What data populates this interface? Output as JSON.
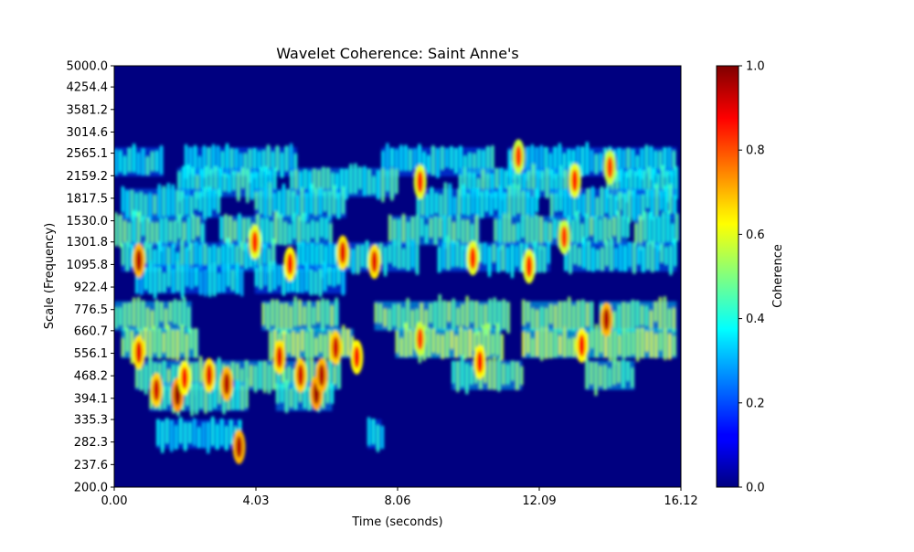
{
  "chart_data": {
    "type": "heatmap",
    "title": "Wavelet Coherence: Saint Anne's",
    "xlabel": "Time (seconds)",
    "ylabel": "Scale (Frequency)",
    "xlim": [
      0.0,
      16.12
    ],
    "x_ticks": [
      "0.00",
      "4.03",
      "8.06",
      "12.09",
      "16.12"
    ],
    "y_scale": "log",
    "ylim": [
      200.0,
      5000.0
    ],
    "y_ticks": [
      "5000.0",
      "4254.4",
      "3581.2",
      "3014.6",
      "2565.1",
      "2159.2",
      "1817.5",
      "1530.0",
      "1301.8",
      "1095.8",
      "922.4",
      "776.5",
      "660.7",
      "556.1",
      "468.2",
      "394.1",
      "335.3",
      "282.3",
      "237.6",
      "200.0"
    ],
    "colormap": "jet",
    "colorbar": {
      "label": "Coherence",
      "range": [
        0.0,
        1.0
      ],
      "ticks": [
        "0.0",
        "0.2",
        "0.4",
        "0.6",
        "0.8",
        "1.0"
      ]
    },
    "background_value": 0.0,
    "bands": [
      {
        "scale": 2400,
        "value": 0.38,
        "segments": [
          [
            0.0,
            1.4
          ],
          [
            2.0,
            5.2
          ],
          [
            7.6,
            10.8
          ],
          [
            11.2,
            16.0
          ]
        ]
      },
      {
        "scale": 2050,
        "value": 0.42,
        "segments": [
          [
            1.8,
            4.6
          ],
          [
            5.0,
            8.0
          ],
          [
            9.8,
            13.2
          ],
          [
            14.0,
            16.0
          ]
        ]
      },
      {
        "scale": 1750,
        "value": 0.4,
        "segments": [
          [
            0.2,
            3.0
          ],
          [
            4.0,
            6.6
          ],
          [
            8.6,
            12.0
          ],
          [
            12.4,
            16.0
          ]
        ]
      },
      {
        "scale": 1420,
        "value": 0.45,
        "segments": [
          [
            0.0,
            2.6
          ],
          [
            3.0,
            6.2
          ],
          [
            7.8,
            10.4
          ],
          [
            10.8,
            14.6
          ],
          [
            14.8,
            16.0
          ]
        ]
      },
      {
        "scale": 1160,
        "value": 0.4,
        "segments": [
          [
            0.2,
            4.6
          ],
          [
            5.2,
            8.6
          ],
          [
            9.2,
            12.4
          ],
          [
            12.8,
            16.0
          ]
        ]
      },
      {
        "scale": 980,
        "value": 0.36,
        "segments": [
          [
            0.6,
            3.6
          ],
          [
            4.0,
            6.6
          ]
        ]
      },
      {
        "scale": 740,
        "value": 0.5,
        "segments": [
          [
            0.0,
            2.2
          ],
          [
            4.2,
            6.4
          ],
          [
            7.4,
            11.2
          ],
          [
            11.6,
            13.6
          ],
          [
            13.8,
            16.0
          ]
        ]
      },
      {
        "scale": 600,
        "value": 0.55,
        "segments": [
          [
            0.2,
            2.4
          ],
          [
            4.4,
            6.8
          ],
          [
            8.0,
            11.0
          ],
          [
            11.6,
            16.0
          ]
        ]
      },
      {
        "scale": 470,
        "value": 0.48,
        "segments": [
          [
            0.6,
            4.8
          ],
          [
            4.8,
            6.4
          ],
          [
            9.6,
            11.6
          ],
          [
            13.4,
            14.8
          ]
        ]
      },
      {
        "scale": 400,
        "value": 0.45,
        "segments": [
          [
            1.0,
            3.8
          ],
          [
            4.6,
            6.2
          ]
        ]
      },
      {
        "scale": 300,
        "value": 0.36,
        "segments": [
          [
            1.2,
            3.6
          ],
          [
            7.2,
            7.6
          ]
        ]
      }
    ],
    "hotspots": [
      {
        "x": 0.7,
        "scale": 1130,
        "value": 0.95
      },
      {
        "x": 0.7,
        "scale": 560,
        "value": 0.9
      },
      {
        "x": 1.2,
        "scale": 420,
        "value": 0.92
      },
      {
        "x": 1.8,
        "scale": 405,
        "value": 0.98
      },
      {
        "x": 2.0,
        "scale": 460,
        "value": 0.88
      },
      {
        "x": 2.7,
        "scale": 470,
        "value": 0.9
      },
      {
        "x": 3.2,
        "scale": 440,
        "value": 0.95
      },
      {
        "x": 3.55,
        "scale": 272,
        "value": 0.95
      },
      {
        "x": 4.0,
        "scale": 1300,
        "value": 0.85
      },
      {
        "x": 4.7,
        "scale": 540,
        "value": 0.9
      },
      {
        "x": 5.0,
        "scale": 1100,
        "value": 0.88
      },
      {
        "x": 5.3,
        "scale": 470,
        "value": 0.92
      },
      {
        "x": 5.75,
        "scale": 410,
        "value": 0.97
      },
      {
        "x": 5.9,
        "scale": 470,
        "value": 0.95
      },
      {
        "x": 6.3,
        "scale": 580,
        "value": 0.92
      },
      {
        "x": 6.5,
        "scale": 1200,
        "value": 0.9
      },
      {
        "x": 6.9,
        "scale": 540,
        "value": 0.88
      },
      {
        "x": 7.4,
        "scale": 1120,
        "value": 0.9
      },
      {
        "x": 8.7,
        "scale": 2060,
        "value": 0.85
      },
      {
        "x": 8.7,
        "scale": 620,
        "value": 0.82
      },
      {
        "x": 10.2,
        "scale": 1150,
        "value": 0.85
      },
      {
        "x": 10.4,
        "scale": 520,
        "value": 0.88
      },
      {
        "x": 11.5,
        "scale": 2500,
        "value": 0.82
      },
      {
        "x": 11.8,
        "scale": 1080,
        "value": 0.85
      },
      {
        "x": 12.8,
        "scale": 1350,
        "value": 0.82
      },
      {
        "x": 13.3,
        "scale": 590,
        "value": 0.88
      },
      {
        "x": 13.1,
        "scale": 2080,
        "value": 0.85
      },
      {
        "x": 14.0,
        "scale": 720,
        "value": 0.95
      },
      {
        "x": 14.1,
        "scale": 2300,
        "value": 0.82
      }
    ]
  }
}
